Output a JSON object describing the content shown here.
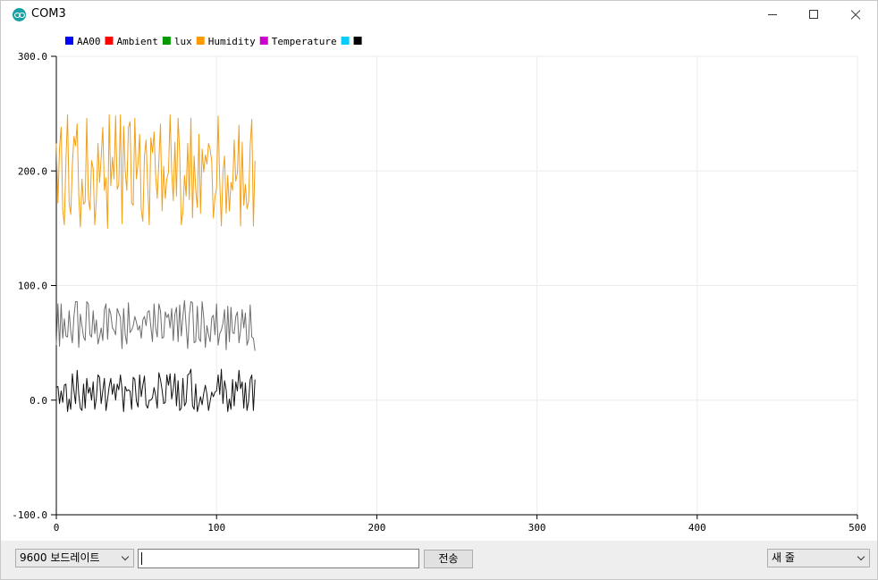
{
  "window": {
    "title": "COM3"
  },
  "toolbar": {
    "baud_select_value": "9600 보드레이트",
    "send_input_value": "",
    "send_button_label": "전송",
    "line_ending_select_value": "새 줄"
  },
  "chart_data": {
    "type": "line",
    "xlim": [
      0,
      500
    ],
    "ylim": [
      -100,
      300
    ],
    "x_ticks": [
      "0",
      "100",
      "200",
      "300",
      "400",
      "500"
    ],
    "y_ticks": [
      "300.0",
      "200.0",
      "100.0",
      "0.0",
      "-100.0"
    ],
    "grid": true,
    "legend_placement": "top-left",
    "legend": [
      {
        "name": "AA00",
        "color": "#0000ff"
      },
      {
        "name": "Ambient",
        "color": "#ff0000"
      },
      {
        "name": "lux",
        "color": "#009900"
      },
      {
        "name": "Humidity",
        "color": "#ff9900"
      },
      {
        "name": "Temperature",
        "color": "#cc00cc"
      },
      {
        "name": "",
        "color": "#00ccff"
      },
      {
        "name": "",
        "color": "#000000"
      }
    ],
    "series": [
      {
        "name": "lux",
        "color": "#f29f18",
        "values": [
          224,
          172,
          220,
          238,
          166,
          153,
          209,
          249,
          172,
          162,
          205,
          230,
          222,
          241,
          179,
          151,
          193,
          171,
          173,
          246,
          176,
          166,
          209,
          202,
          153,
          175,
          224,
          190,
          212,
          238,
          183,
          194,
          150,
          249,
          187,
          212,
          193,
          248,
          184,
          188,
          249,
          154,
          239,
          200,
          183,
          238,
          243,
          172,
          170,
          246,
          193,
          207,
          232,
          166,
          156,
          213,
          227,
          188,
          153,
          229,
          216,
          234,
          196,
          176,
          208,
          241,
          165,
          204,
          176,
          193,
          199,
          249,
          200,
          174,
          225,
          178,
          246,
          215,
          153,
          164,
          196,
          178,
          224,
          175,
          246,
          159,
          213,
          184,
          168,
          232,
          163,
          219,
          199,
          214,
          206,
          224,
          219,
          208,
          159,
          177,
          185,
          248,
          190,
          152,
          199,
          213,
          163,
          196,
          165,
          190,
          183,
          227,
          191,
          198,
          240,
          152,
          225,
          170,
          188,
          167,
          173,
          222,
          245,
          152,
          209
        ]
      },
      {
        "name": "Humidity",
        "color": "#6e6e6e",
        "values": [
          48,
          84,
          47,
          84,
          54,
          71,
          56,
          55,
          78,
          60,
          50,
          73,
          86,
          86,
          46,
          75,
          65,
          55,
          52,
          86,
          84,
          57,
          55,
          78,
          58,
          70,
          49,
          55,
          63,
          52,
          79,
          84,
          53,
          80,
          75,
          63,
          61,
          57,
          80,
          76,
          72,
          45,
          80,
          57,
          49,
          85,
          59,
          61,
          65,
          73,
          68,
          61,
          65,
          54,
          70,
          73,
          65,
          77,
          78,
          64,
          51,
          84,
          63,
          55,
          84,
          78,
          54,
          55,
          77,
          72,
          75,
          63,
          80,
          52,
          75,
          81,
          51,
          83,
          56,
          73,
          87,
          65,
          45,
          74,
          86,
          85,
          50,
          51,
          82,
          54,
          51,
          86,
          72,
          46,
          65,
          57,
          51,
          72,
          74,
          57,
          84,
          48,
          58,
          61,
          67,
          79,
          44,
          82,
          51,
          81,
          59,
          58,
          73,
          77,
          50,
          61,
          79,
          63,
          76,
          48,
          53,
          83,
          55,
          54,
          43
        ]
      },
      {
        "name": "Temperature",
        "color": "#111111",
        "values": [
          11,
          12,
          -3,
          8,
          -2,
          13,
          14,
          -10,
          1,
          -8,
          23,
          8,
          -3,
          26,
          5,
          -7,
          -9,
          14,
          -7,
          19,
          6,
          11,
          0,
          16,
          -8,
          2,
          22,
          20,
          -3,
          8,
          19,
          -9,
          1,
          12,
          19,
          5,
          14,
          0,
          14,
          9,
          22,
          10,
          -10,
          12,
          8,
          9,
          8,
          -8,
          20,
          18,
          -1,
          -6,
          22,
          3,
          13,
          21,
          -4,
          -7,
          0,
          0,
          2,
          11,
          4,
          -7,
          24,
          18,
          9,
          -3,
          -2,
          22,
          13,
          23,
          1,
          10,
          23,
          -5,
          17,
          -9,
          -7,
          19,
          -5,
          -2,
          22,
          23,
          27,
          -5,
          -8,
          14,
          -10,
          -4,
          3,
          -4,
          6,
          13,
          5,
          -9,
          -1,
          7,
          3,
          7,
          8,
          22,
          5,
          27,
          -3,
          17,
          9,
          -10,
          1,
          -8,
          18,
          -5,
          16,
          8,
          26,
          10,
          16,
          -7,
          15,
          -9,
          -1,
          18,
          22,
          -9,
          18
        ]
      }
    ]
  }
}
